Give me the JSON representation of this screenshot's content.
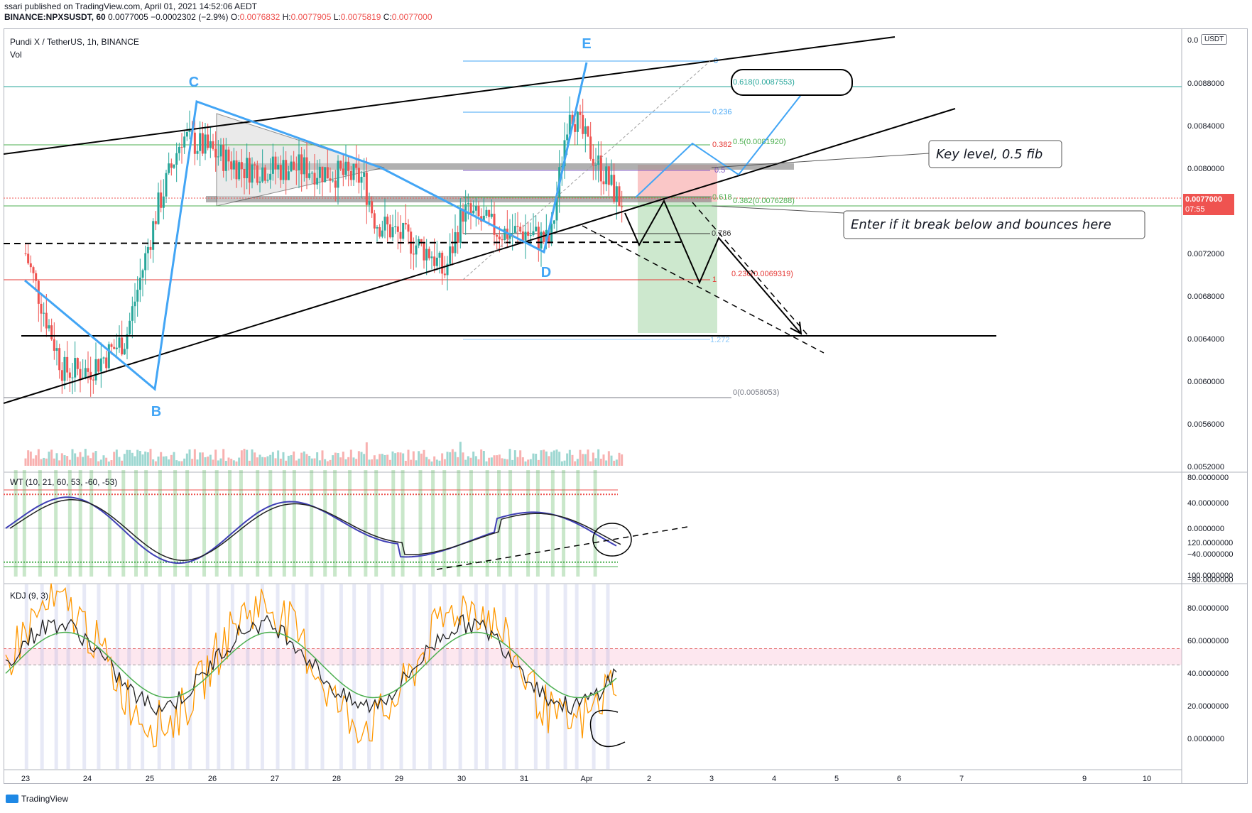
{
  "header": {
    "line1": "ssari published on TradingView.com, April 01, 2021 14:52:06 AEDT",
    "symbol": "BINANCE:NPXSUSDT, 60",
    "price": "0.0077005",
    "change": "−0.0002302 (−2.9%)",
    "o": "0.0076832",
    "h": "0.0077905",
    "l": "0.0075819",
    "c": "0.0077000"
  },
  "chart_title": "Pundi X / TetherUS, 1h, BINANCE",
  "vol_label": "Vol",
  "currency": "USDT",
  "current_price": "0.0077000",
  "countdown": "07:55",
  "brand": "TradingView",
  "colors": {
    "up": "#26a69a",
    "down": "#ef5350",
    "wave": "#42a5f5",
    "wt_fast": "#3f3fb5",
    "kdj_j": "#ff9800",
    "kdj_d": "#4caf50",
    "sell_zone": "#f8b4b4",
    "target_zone": "#c8e6c9"
  },
  "annotations": {
    "key_level": "Key level, 0.5 fib",
    "entry": "Enter if it break below and bounces here"
  },
  "wave_labels": [
    "C",
    "E",
    "D",
    "B"
  ],
  "fib_labels": {
    "top_0": "0",
    "ext_618": "0.618(0.0087553)",
    "f236": "0.236",
    "f382": "0.382",
    "f05": "0.5(0.0081920)",
    "f5": "0.5",
    "f618": "0.618",
    "f382b": "0.382(0.0076288)",
    "f786": "0.786",
    "f1": "1",
    "f236b": "0.236(0.0069319)",
    "f1272": "1.272",
    "zero": "0(0.0058053)"
  },
  "indicators": {
    "wt_label": "WT (10, 21, 60, 53, -60, -53)",
    "kdj_label": "KDJ (9, 3)"
  },
  "chart_data": [
    {
      "type": "candlestick",
      "title": "Pundi X / TetherUS, 1h, BINANCE",
      "x_ticks": [
        "23",
        "24",
        "25",
        "26",
        "27",
        "28",
        "29",
        "30",
        "31",
        "Apr",
        "2",
        "3",
        "4",
        "5",
        "6",
        "7",
        "9",
        "10"
      ],
      "price_ticks": [
        "0.0088000",
        "0.0084000",
        "0.0080000",
        "0.0076000",
        "0.0072000",
        "0.0068000",
        "0.0064000",
        "0.0060000",
        "0.0056000",
        "0.0052000"
      ],
      "ylim": [
        0.0051,
        0.0091
      ],
      "ohlc_key_points": [
        {
          "day": 23.0,
          "price": 0.0072
        },
        {
          "day": 23.6,
          "price": 0.0061
        },
        {
          "day": 24.0,
          "price": 0.0061
        },
        {
          "day": 24.6,
          "price": 0.0064
        },
        {
          "day": 25.1,
          "price": 0.0076
        },
        {
          "day": 25.5,
          "price": 0.0083
        },
        {
          "day": 26.5,
          "price": 0.008
        },
        {
          "day": 27.5,
          "price": 0.008
        },
        {
          "day": 28.4,
          "price": 0.0079
        },
        {
          "day": 28.6,
          "price": 0.0075
        },
        {
          "day": 29.5,
          "price": 0.0072
        },
        {
          "day": 29.7,
          "price": 0.007
        },
        {
          "day": 30.0,
          "price": 0.0076
        },
        {
          "day": 30.6,
          "price": 0.0074
        },
        {
          "day": 31.0,
          "price": 0.0074
        },
        {
          "day": 31.4,
          "price": 0.0073
        },
        {
          "day": 31.7,
          "price": 0.0086
        },
        {
          "day": 32.0,
          "price": 0.0082
        },
        {
          "day": 32.5,
          "price": 0.0077
        }
      ]
    },
    {
      "type": "line",
      "title": "WT (10, 21, 60, 53, -60, -53)",
      "y_ticks": [
        "80.0000000",
        "40.0000000",
        "0.0000000",
        "−40.0000000",
        "−80.0000000"
      ],
      "ylim": [
        -85,
        85
      ]
    },
    {
      "type": "line",
      "title": "KDJ (9, 3)",
      "y_ticks": [
        "120.0000000",
        "100.0000000",
        "80.0000000",
        "60.0000000",
        "40.0000000",
        "20.0000000",
        "0.0000000"
      ],
      "ylim": [
        -10,
        125
      ]
    }
  ]
}
